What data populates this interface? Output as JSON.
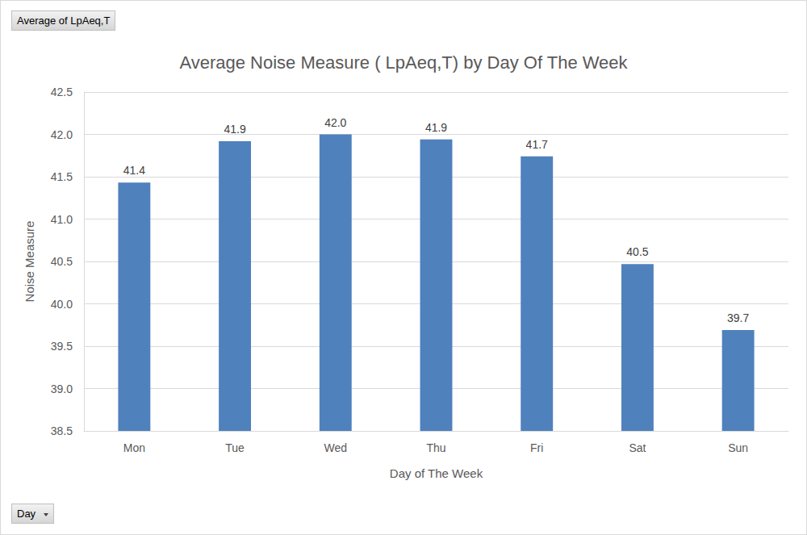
{
  "chart_data": {
    "type": "bar",
    "title": "Average Noise Measure ( LpAeq,T) by Day Of The Week",
    "x_label": "Day of The Week",
    "y_label": "Noise Measure",
    "categories": [
      "Mon",
      "Tue",
      "Wed",
      "Thu",
      "Fri",
      "Sat",
      "Sun"
    ],
    "values": [
      41.43,
      41.92,
      42.0,
      41.94,
      41.74,
      40.47,
      39.69
    ],
    "value_labels": [
      "41.4",
      "41.9",
      "42.0",
      "41.9",
      "41.7",
      "40.5",
      "39.7"
    ],
    "color": "#4f81bd",
    "ylim": [
      38.5,
      42.5
    ],
    "yticks": [
      38.5,
      {
        "value": 39,
        "label": "39.0"
      },
      39.5,
      {
        "value": 40,
        "label": "40.0"
      },
      40.5,
      {
        "value": 41,
        "label": "41.0"
      },
      41.5,
      {
        "value": 42,
        "label": "42.0"
      },
      42.5
    ],
    "grid": true,
    "data_labels": true,
    "annotations": [
      "Average of LpAeq,T",
      "Day"
    ]
  }
}
